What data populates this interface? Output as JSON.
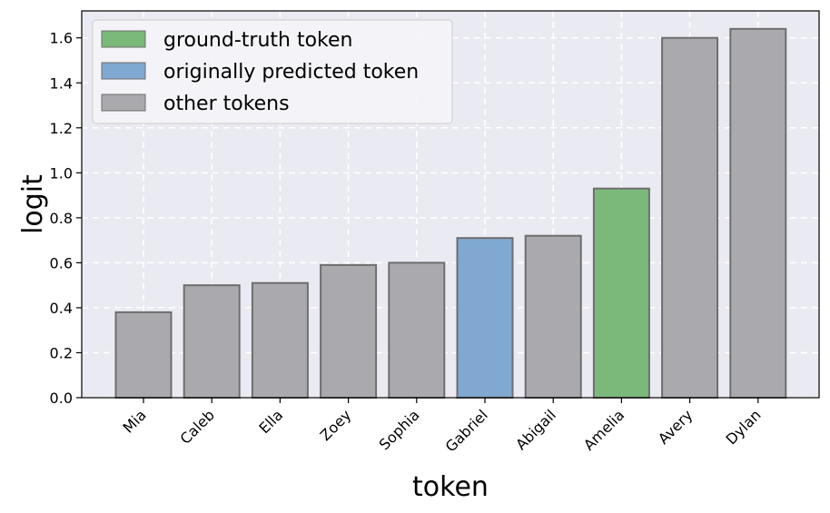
{
  "chart_data": {
    "type": "bar",
    "title": "",
    "xlabel": "token",
    "ylabel": "logit",
    "categories": [
      "Mia",
      "Caleb",
      "Ella",
      "Zoey",
      "Sophia",
      "Gabriel",
      "Abigail",
      "Amelia",
      "Avery",
      "Dylan"
    ],
    "values": [
      0.38,
      0.5,
      0.51,
      0.59,
      0.6,
      0.71,
      0.72,
      0.93,
      1.6,
      1.64
    ],
    "bar_roles": [
      "other",
      "other",
      "other",
      "other",
      "other",
      "predicted",
      "other",
      "ground_truth",
      "other",
      "other"
    ],
    "ylim": [
      0,
      1.72
    ],
    "yticks": [
      "0.0",
      "0.2",
      "0.4",
      "0.6",
      "0.8",
      "1.0",
      "1.2",
      "1.4",
      "1.6"
    ],
    "grid": true,
    "legend_position": "top-left",
    "legend": [
      {
        "role": "ground_truth",
        "label": "ground-truth token"
      },
      {
        "role": "predicted",
        "label": "originally predicted token"
      },
      {
        "role": "other",
        "label": "other tokens"
      }
    ],
    "colors": {
      "ground_truth": "#7bb97b",
      "predicted": "#80a8d0",
      "other": "#aaaaae",
      "bar_edge": "#6e6e6e",
      "plot_background": "#eaeaf2",
      "grid": "#ffffff"
    }
  }
}
